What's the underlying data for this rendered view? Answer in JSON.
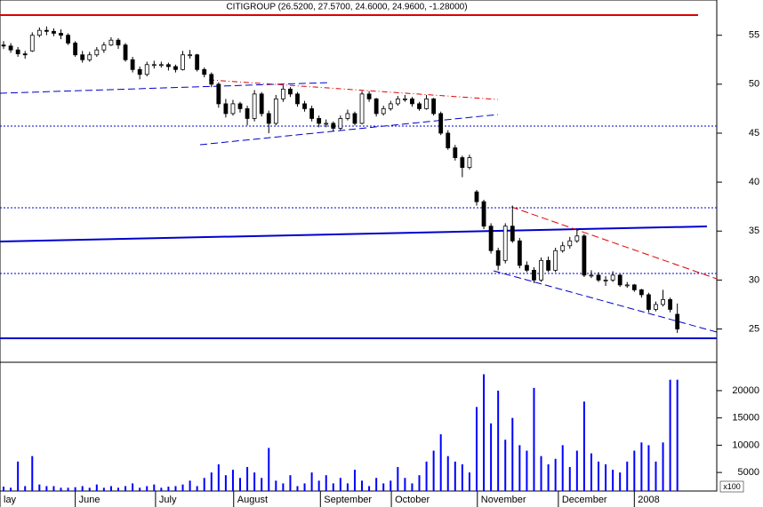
{
  "chart_data": [
    {
      "type": "candlestick",
      "title": "CITIGROUP (26.5200, 27.5700, 24.6000, 24.9600, -1.28000)",
      "xlim": [
        0,
        100
      ],
      "xticks": [
        {
          "value": 0,
          "label": "lay"
        },
        {
          "value": 10.5,
          "label": "June"
        },
        {
          "value": 21.7,
          "label": "July"
        },
        {
          "value": 32.6,
          "label": "August"
        },
        {
          "value": 44.7,
          "label": "September"
        },
        {
          "value": 54.6,
          "label": "October"
        },
        {
          "value": 66.6,
          "label": "November"
        },
        {
          "value": 77.9,
          "label": "December"
        },
        {
          "value": 88.5,
          "label": "2008"
        }
      ],
      "ylim": [
        21.6,
        58.6
      ],
      "yticks": [
        25,
        30,
        35,
        40,
        45,
        50,
        55
      ],
      "up_color": "#ffffff",
      "down_color": "#000000",
      "ohlc": [
        [
          54,
          54.4,
          53.6,
          53.9
        ],
        [
          53.9,
          54.2,
          53.2,
          53.5
        ],
        [
          53.5,
          53.8,
          52.8,
          53.1
        ],
        [
          53.1,
          53.4,
          52.6,
          53
        ],
        [
          53.4,
          55.3,
          53.3,
          55
        ],
        [
          55,
          55.8,
          54.8,
          55.5
        ],
        [
          55.5,
          55.9,
          55,
          55.4
        ],
        [
          55.4,
          55.7,
          54.9,
          55.2
        ],
        [
          55.2,
          55.6,
          54.6,
          55
        ],
        [
          55,
          55.2,
          54,
          54.2
        ],
        [
          54.2,
          54.4,
          52.8,
          53
        ],
        [
          53,
          53.4,
          52.2,
          52.5
        ],
        [
          52.5,
          53.3,
          52.3,
          53
        ],
        [
          53,
          53.8,
          52.8,
          53.5
        ],
        [
          53.5,
          54.3,
          53.2,
          54
        ],
        [
          54,
          54.8,
          53.9,
          54.5
        ],
        [
          54.5,
          54.7,
          53.6,
          54
        ],
        [
          54,
          54.2,
          52.3,
          52.5
        ],
        [
          52.5,
          52.8,
          51.2,
          51.5
        ],
        [
          51.5,
          51.8,
          50.5,
          51
        ],
        [
          51,
          52.3,
          50.8,
          52
        ],
        [
          52,
          52.4,
          51.6,
          52
        ],
        [
          52,
          52.3,
          51.7,
          52
        ],
        [
          52,
          52.2,
          51.4,
          51.8
        ],
        [
          51.8,
          52,
          51.2,
          51.5
        ],
        [
          51.5,
          53.4,
          51.4,
          53
        ],
        [
          53,
          53.5,
          52.6,
          53
        ],
        [
          53,
          53.1,
          51.3,
          51.5
        ],
        [
          51.5,
          51.7,
          50.7,
          51
        ],
        [
          51,
          51.2,
          49.7,
          50
        ],
        [
          50,
          50.2,
          47.6,
          48
        ],
        [
          48,
          48.5,
          46.6,
          47
        ],
        [
          47,
          48.4,
          46.8,
          48
        ],
        [
          48,
          48.2,
          47.1,
          47.5
        ],
        [
          47.5,
          47.8,
          45.8,
          46.5
        ],
        [
          46.5,
          49.4,
          46.2,
          49
        ],
        [
          49,
          49.2,
          46.7,
          47
        ],
        [
          47,
          47.3,
          45,
          46
        ],
        [
          46,
          48.9,
          45.8,
          48.5
        ],
        [
          48.5,
          49.9,
          48.2,
          49.5
        ],
        [
          49.5,
          49.7,
          48.7,
          49
        ],
        [
          49,
          49.2,
          47.7,
          48
        ],
        [
          48,
          48.3,
          47.2,
          47.5
        ],
        [
          47.5,
          47.8,
          46.2,
          46.5
        ],
        [
          46.5,
          46.8,
          45.6,
          46
        ],
        [
          46,
          46.4,
          45.6,
          46
        ],
        [
          46,
          46.2,
          45.2,
          45.5
        ],
        [
          45.5,
          46.8,
          45.3,
          46.5
        ],
        [
          46.5,
          47.4,
          46.3,
          47
        ],
        [
          47,
          47.2,
          45.8,
          46
        ],
        [
          46,
          49.3,
          45.9,
          49
        ],
        [
          49,
          49.3,
          48.2,
          48.5
        ],
        [
          48.5,
          48.6,
          46.7,
          47
        ],
        [
          47,
          47.8,
          46.8,
          47.5
        ],
        [
          47.5,
          48.3,
          47.3,
          48
        ],
        [
          48,
          48.8,
          47.8,
          48.5
        ],
        [
          48.5,
          48.9,
          48.2,
          48.5
        ],
        [
          48.5,
          48.7,
          47.7,
          48
        ],
        [
          48,
          48.2,
          47.3,
          47.5
        ],
        [
          47.5,
          48.9,
          47.4,
          48.5
        ],
        [
          48.5,
          48.6,
          46.8,
          47
        ],
        [
          47,
          47.2,
          44.8,
          45
        ],
        [
          45,
          45.3,
          43.3,
          43.5
        ],
        [
          43.5,
          43.8,
          42.2,
          42.5
        ],
        [
          42.5,
          42.7,
          40.5,
          41.5
        ],
        [
          41.5,
          42.8,
          41.3,
          42.5
        ],
        [
          39,
          39.2,
          37.6,
          38
        ],
        [
          38,
          38.2,
          35.2,
          35.5
        ],
        [
          35.5,
          35.8,
          32.7,
          33
        ],
        [
          33,
          33.3,
          31,
          31.5
        ],
        [
          32,
          35.8,
          31.7,
          35.5
        ],
        [
          35.5,
          37.6,
          33.8,
          34
        ],
        [
          34,
          34.3,
          31.2,
          31.5
        ],
        [
          31.5,
          31.9,
          30.8,
          31
        ],
        [
          31,
          31.3,
          29.7,
          30
        ],
        [
          30,
          32.3,
          29.8,
          32
        ],
        [
          32,
          32.4,
          30.8,
          31
        ],
        [
          31,
          33.3,
          30.8,
          33
        ],
        [
          33,
          33.9,
          32.8,
          33.5
        ],
        [
          33.5,
          34.4,
          33.2,
          34
        ],
        [
          34,
          35.2,
          33.8,
          34.5
        ],
        [
          34.5,
          34.7,
          30.3,
          30.5
        ],
        [
          30.5,
          31,
          30.2,
          30.5
        ],
        [
          30.5,
          30.8,
          29.8,
          30
        ],
        [
          30,
          30.4,
          29.4,
          30
        ],
        [
          30,
          30.9,
          29.8,
          30.5
        ],
        [
          30.5,
          30.6,
          29.3,
          29.5
        ],
        [
          29.5,
          29.8,
          29.2,
          29.5
        ],
        [
          29.5,
          29.6,
          28.8,
          29
        ],
        [
          29,
          29.1,
          28.2,
          28.5
        ],
        [
          28.5,
          28.7,
          26.7,
          27
        ],
        [
          27,
          27.8,
          26.8,
          27.5
        ],
        [
          27.5,
          29,
          27.3,
          28
        ],
        [
          28,
          28.2,
          26.7,
          27
        ],
        [
          26.5,
          27.6,
          24.6,
          25
        ]
      ]
    },
    {
      "type": "bar",
      "color": "#0000ff",
      "ylim": [
        1600,
        25200
      ],
      "yticks": [
        5000,
        10000,
        15000,
        20000
      ],
      "unit_label": "x100",
      "values": [
        2400,
        2200,
        7000,
        2500,
        8000,
        2800,
        2500,
        2500,
        2200,
        2200,
        2300,
        2500,
        2200,
        2800,
        2200,
        2500,
        2200,
        2500,
        3000,
        2200,
        2500,
        2800,
        2200,
        2400,
        2500,
        2800,
        3500,
        2500,
        4000,
        5000,
        6500,
        4500,
        5500,
        4000,
        6000,
        5000,
        4000,
        9500,
        3500,
        3000,
        4500,
        2500,
        3000,
        5000,
        3500,
        4500,
        3000,
        4000,
        3000,
        5500,
        3500,
        2500,
        4000,
        3000,
        3500,
        6000,
        4000,
        3000,
        4500,
        7000,
        9000,
        12000,
        8000,
        7000,
        6500,
        5000,
        17000,
        23000,
        14000,
        20000,
        11000,
        15000,
        10000,
        9000,
        20500,
        8000,
        6500,
        7500,
        10000,
        6000,
        9000,
        18000,
        8500,
        7000,
        6500,
        5500,
        5000,
        7000,
        9000,
        10500,
        10000,
        7000,
        10500,
        22000,
        22000
      ]
    }
  ]
}
